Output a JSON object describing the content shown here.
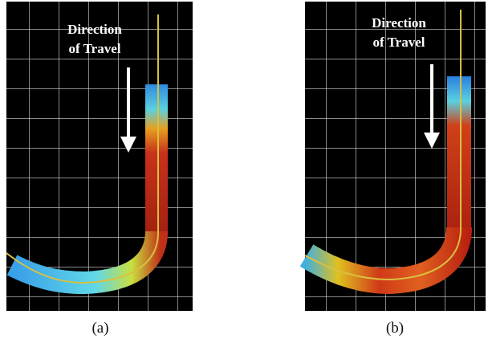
{
  "panels": [
    {
      "annotation": [
        "Direction",
        "of Travel"
      ],
      "caption": "(a)"
    },
    {
      "annotation": [
        "Direction",
        "of Travel"
      ],
      "caption": "(b)"
    }
  ]
}
